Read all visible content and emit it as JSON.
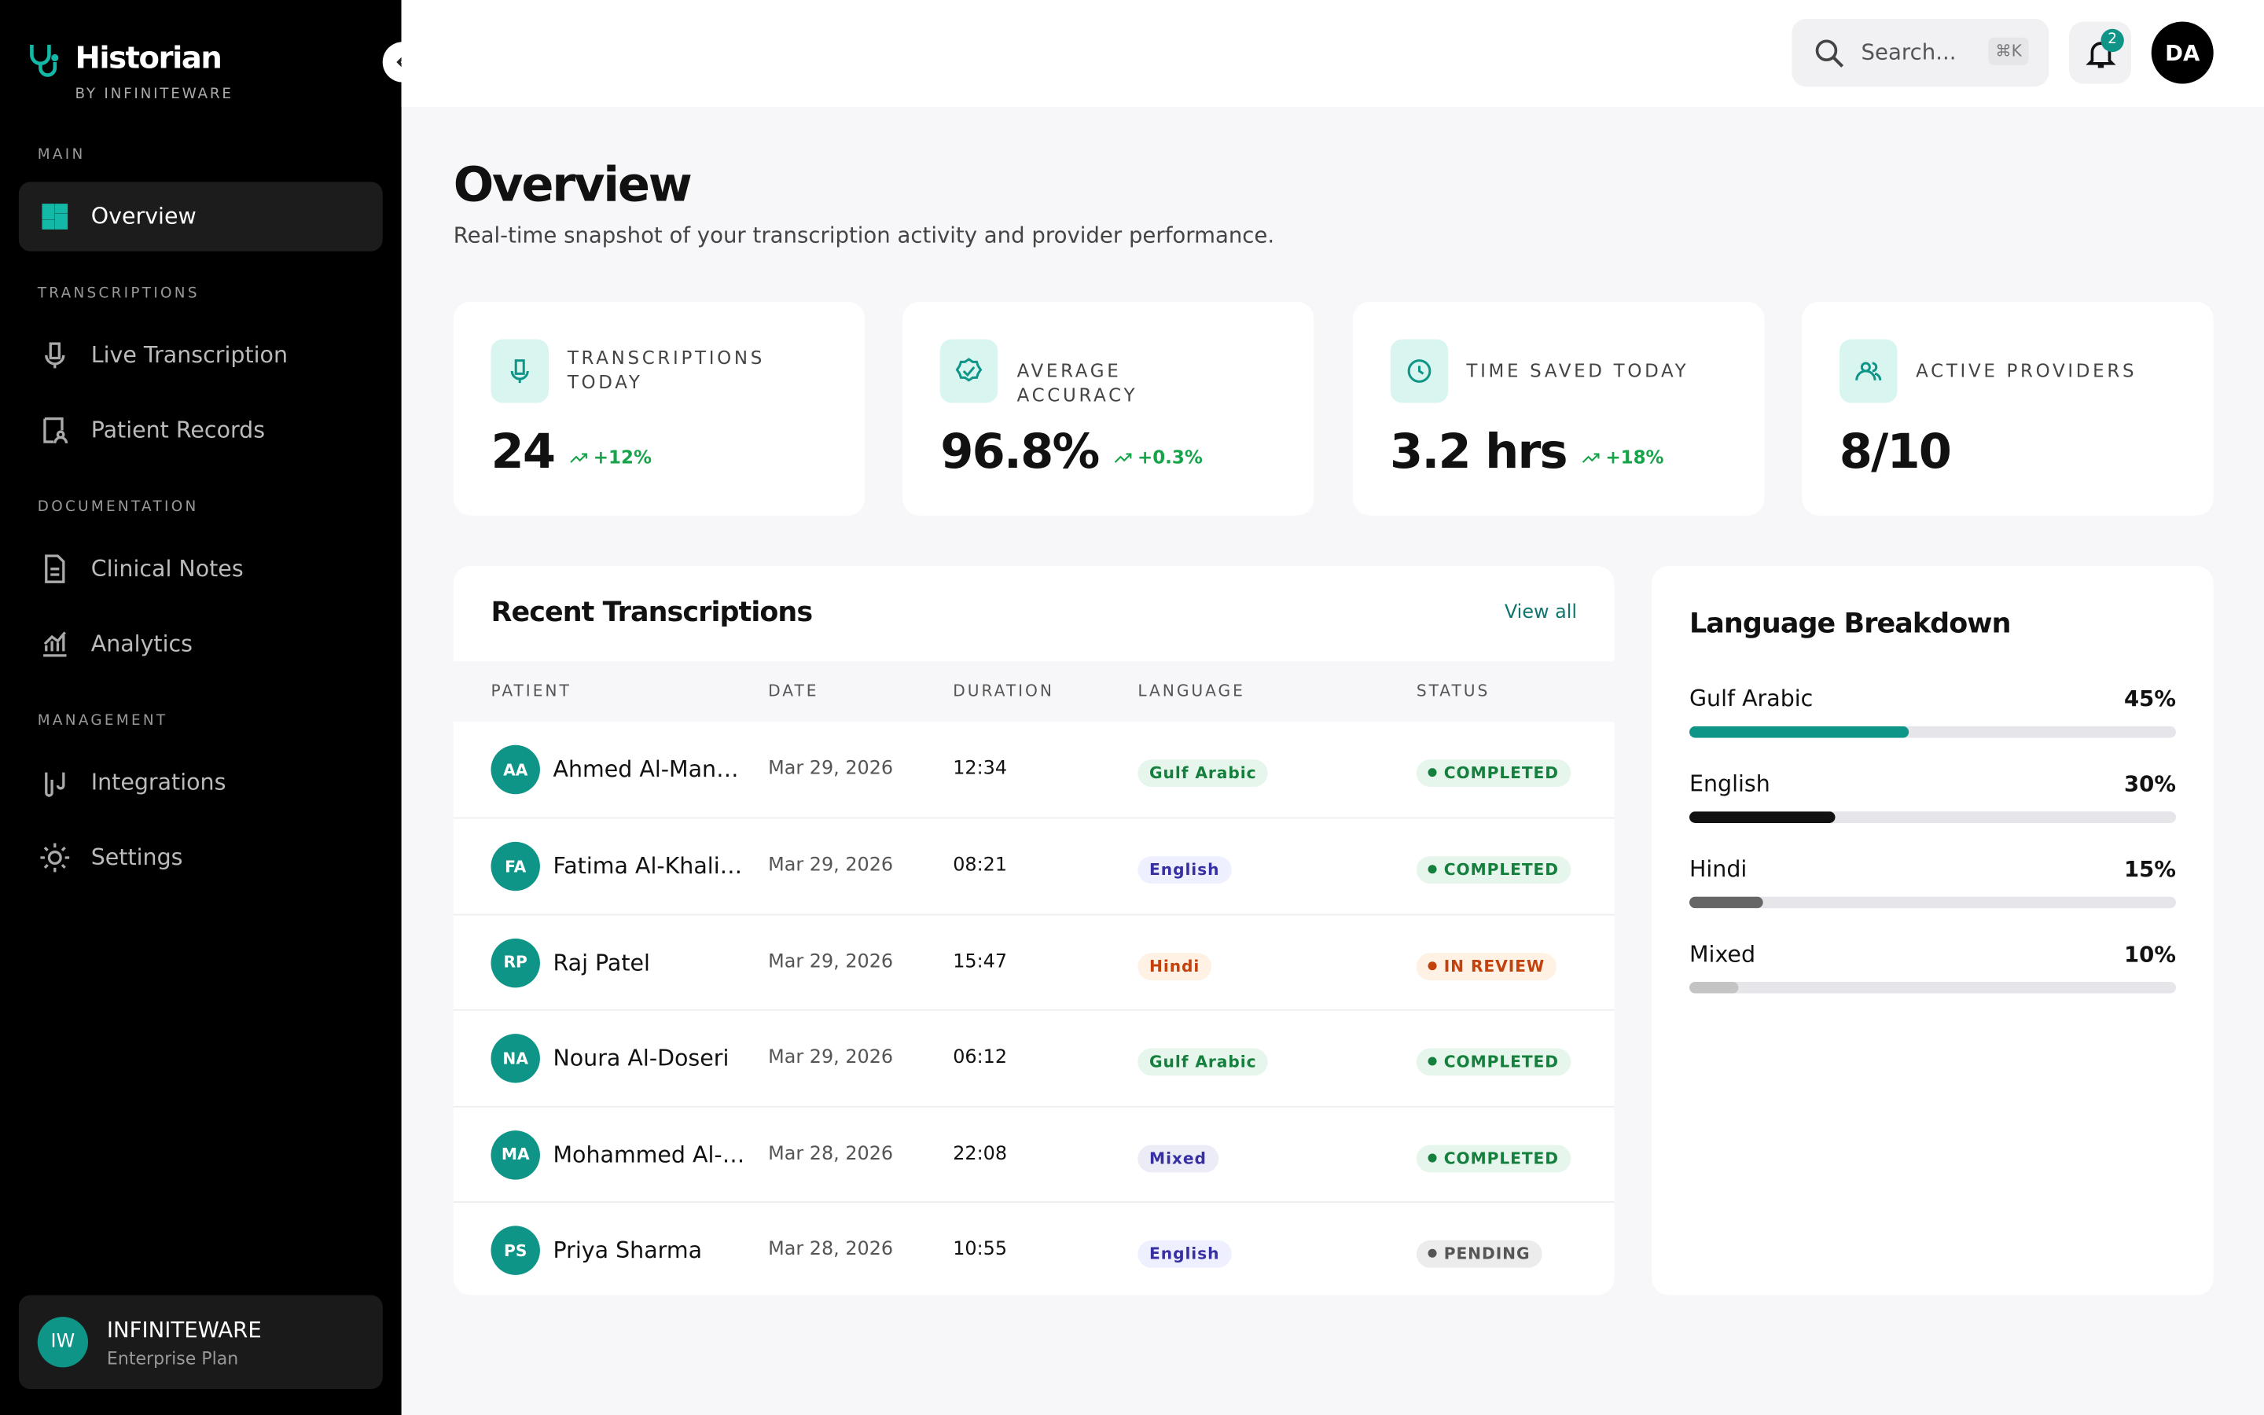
{
  "sidebar": {
    "brand": "Historian",
    "tagline": "BY INFINITEWARE",
    "sections": [
      {
        "heading": "MAIN",
        "items": [
          "Overview"
        ]
      },
      {
        "heading": "TRANSCRIPTIONS",
        "items": [
          "Live Transcription",
          "Patient Records"
        ]
      },
      {
        "heading": "DOCUMENTATION",
        "items": [
          "Clinical Notes",
          "Analytics"
        ]
      },
      {
        "heading": "MANAGEMENT",
        "items": [
          "Integrations",
          "Settings"
        ]
      }
    ],
    "account": {
      "initials": "IW",
      "name": "INFINITEWARE",
      "plan": "Enterprise Plan"
    }
  },
  "header": {
    "search_placeholder": "Search...",
    "shortcut": "⌘K",
    "notifications": "2",
    "user_initials": "DA"
  },
  "page": {
    "title": "Overview",
    "subtitle": "Real-time snapshot of your transcription activity and provider performance."
  },
  "stats": [
    {
      "label": "TRANSCRIPTIONS TODAY",
      "value": "24",
      "change": "+12%"
    },
    {
      "label": "AVERAGE ACCURACY",
      "value": "96.8%",
      "change": "+0.3%"
    },
    {
      "label": "TIME SAVED TODAY",
      "value": "3.2 hrs",
      "change": "+18%"
    },
    {
      "label": "ACTIVE PROVIDERS",
      "value": "8/10"
    }
  ],
  "recent": {
    "title": "Recent Transcriptions",
    "link": "View all",
    "columns": [
      "PATIENT",
      "DATE",
      "DURATION",
      "LANGUAGE",
      "STATUS"
    ],
    "rows": [
      {
        "initials": "AA",
        "patient": "Ahmed Al-Man…",
        "date": "Mar 29, 2026",
        "duration": "12:34",
        "language": "Gulf Arabic",
        "status": "COMPLETED"
      },
      {
        "initials": "FA",
        "patient": "Fatima Al-Khali…",
        "date": "Mar 29, 2026",
        "duration": "08:21",
        "language": "English",
        "status": "COMPLETED"
      },
      {
        "initials": "RP",
        "patient": "Raj Patel",
        "date": "Mar 29, 2026",
        "duration": "15:47",
        "language": "Hindi",
        "status": "IN REVIEW"
      },
      {
        "initials": "NA",
        "patient": "Noura Al-Doseri",
        "date": "Mar 29, 2026",
        "duration": "06:12",
        "language": "Gulf Arabic",
        "status": "COMPLETED"
      },
      {
        "initials": "MA",
        "patient": "Mohammed Al-…",
        "date": "Mar 28, 2026",
        "duration": "22:08",
        "language": "Mixed",
        "status": "COMPLETED"
      },
      {
        "initials": "PS",
        "patient": "Priya Sharma",
        "date": "Mar 28, 2026",
        "duration": "10:55",
        "language": "English",
        "status": "PENDING"
      }
    ]
  },
  "languages": {
    "title": "Language Breakdown",
    "items": [
      {
        "name": "Gulf Arabic",
        "value": 45,
        "label": "45%",
        "color": "#0f9488"
      },
      {
        "name": "English",
        "value": 30,
        "label": "30%",
        "color": "#111111"
      },
      {
        "name": "Hindi",
        "value": 15,
        "label": "15%",
        "color": "#666666"
      },
      {
        "name": "Mixed",
        "value": 10,
        "label": "10%",
        "color": "#c4c4c4"
      }
    ]
  }
}
